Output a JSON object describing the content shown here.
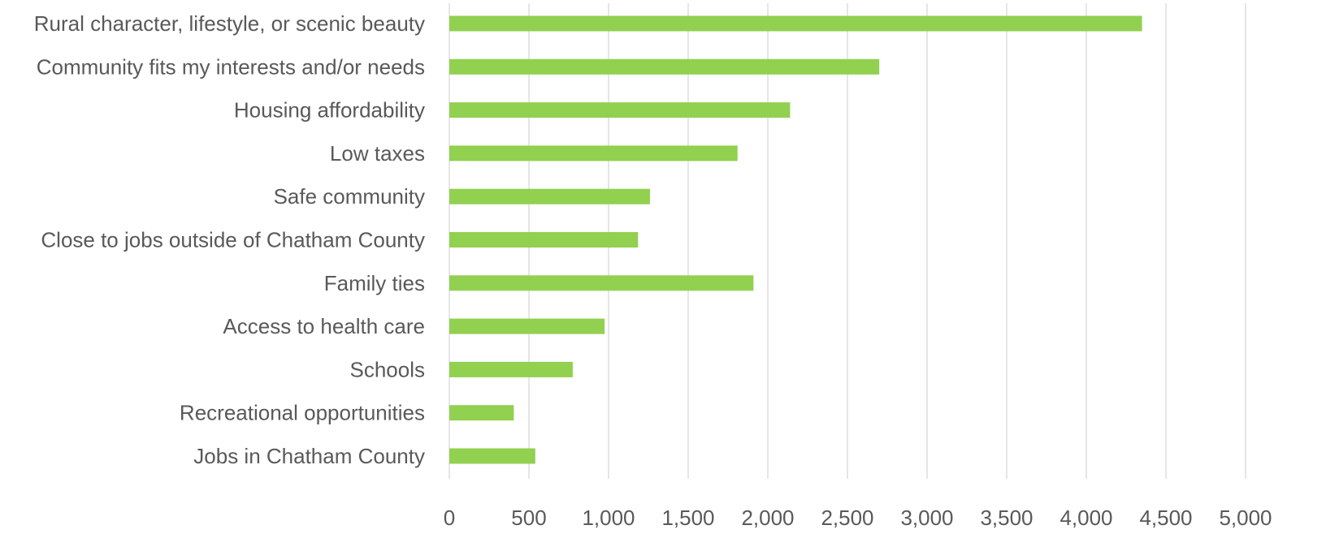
{
  "chart_data": {
    "type": "bar",
    "orientation": "horizontal",
    "categories": [
      "Rural character, lifestyle, or scenic beauty",
      "Community fits my interests and/or needs",
      "Housing affordability",
      "Low taxes",
      "Safe community",
      "Close to jobs outside of Chatham County",
      "Family ties",
      "Access to health care",
      "Schools",
      "Recreational opportunities",
      "Jobs in Chatham County"
    ],
    "values": [
      4350,
      2700,
      2140,
      1810,
      1260,
      1185,
      1910,
      975,
      775,
      405,
      540
    ],
    "xlim": [
      0,
      5000
    ],
    "x_ticks": [
      0,
      500,
      1000,
      1500,
      2000,
      2500,
      3000,
      3500,
      4000,
      4500,
      5000
    ],
    "x_tick_labels": [
      "0",
      "500",
      "1,000",
      "1,500",
      "2,000",
      "2,500",
      "3,000",
      "3,500",
      "4,000",
      "4,500",
      "5,000"
    ],
    "grid": true,
    "legend": "none",
    "title": "",
    "xlabel": "",
    "ylabel": "",
    "colors": {
      "bar": "#92d050",
      "grid": "#d9d9d9",
      "text": "#595959"
    }
  }
}
